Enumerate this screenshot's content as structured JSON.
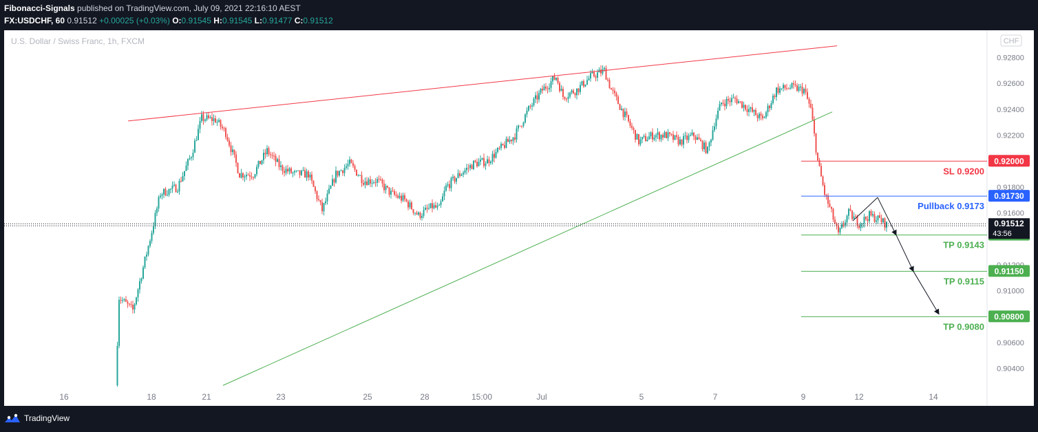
{
  "header": {
    "author": "Fibonacci-Signals",
    "published_text": "published on TradingView.com, July 09, 2021 22:16:10 AEST",
    "symbol": "FX:USDCHF, 60",
    "last": "0.91512",
    "change": "+0.00025 (+0.03%)",
    "o_label": "O:",
    "o_value": "0.91545",
    "h_label": "H:",
    "h_value": "0.91545",
    "l_label": "L:",
    "l_value": "0.91477",
    "c_label": "C:",
    "c_value": "0.91512"
  },
  "footer": {
    "brand": "TradingView"
  },
  "colors": {
    "up": "#26a69a",
    "down": "#ef5350",
    "sl": "#f23645",
    "pullback": "#2962ff",
    "tp": "#4caf50",
    "resistance": "#f23645",
    "support": "#4caf50",
    "arrow": "#131722",
    "axis_text": "#787b86",
    "current": "#131722"
  },
  "chart_data": {
    "type": "candlestick",
    "title": "U.S. Dollar / Swiss Franc, 1h, FXCM",
    "currency": "CHF",
    "ylim": [
      0.9025,
      0.9301
    ],
    "y_ticks": [
      "0.92800",
      "0.92600",
      "0.92400",
      "0.92200",
      "0.91800",
      "0.91600",
      "0.91200",
      "0.91000",
      "0.90600",
      "0.90400"
    ],
    "x_ticks": [
      "16",
      "18",
      "21",
      "23",
      "25",
      "28",
      "15:00",
      "Jul",
      "5",
      "7",
      "9",
      "12",
      "14"
    ],
    "price_path": [
      [
        0,
        0.9027
      ],
      [
        1,
        0.9095
      ],
      [
        5,
        0.9085
      ],
      [
        10,
        0.914
      ],
      [
        13,
        0.9175
      ],
      [
        18,
        0.918
      ],
      [
        22,
        0.9205
      ],
      [
        25,
        0.9233
      ],
      [
        29,
        0.9232
      ],
      [
        32,
        0.9222
      ],
      [
        36,
        0.919
      ],
      [
        40,
        0.919
      ],
      [
        44,
        0.9208
      ],
      [
        48,
        0.9195
      ],
      [
        52,
        0.919
      ],
      [
        56,
        0.919
      ],
      [
        60,
        0.9162
      ],
      [
        64,
        0.919
      ],
      [
        68,
        0.9198
      ],
      [
        72,
        0.9185
      ],
      [
        76,
        0.9185
      ],
      [
        80,
        0.9175
      ],
      [
        84,
        0.917
      ],
      [
        88,
        0.9158
      ],
      [
        92,
        0.9165
      ],
      [
        94,
        0.9163
      ],
      [
        96,
        0.918
      ],
      [
        100,
        0.919
      ],
      [
        104,
        0.9198
      ],
      [
        108,
        0.92
      ],
      [
        112,
        0.921
      ],
      [
        116,
        0.922
      ],
      [
        120,
        0.924
      ],
      [
        124,
        0.9255
      ],
      [
        128,
        0.9265
      ],
      [
        130,
        0.925
      ],
      [
        134,
        0.9255
      ],
      [
        138,
        0.9265
      ],
      [
        142,
        0.927
      ],
      [
        144,
        0.9255
      ],
      [
        146,
        0.9245
      ],
      [
        148,
        0.9235
      ],
      [
        152,
        0.9215
      ],
      [
        156,
        0.922
      ],
      [
        160,
        0.922
      ],
      [
        164,
        0.9215
      ],
      [
        168,
        0.922
      ],
      [
        172,
        0.9208
      ],
      [
        174,
        0.923
      ],
      [
        176,
        0.9245
      ],
      [
        180,
        0.9248
      ],
      [
        184,
        0.924
      ],
      [
        188,
        0.9232
      ],
      [
        192,
        0.9255
      ],
      [
        196,
        0.9257
      ],
      [
        200,
        0.9255
      ],
      [
        202,
        0.924
      ],
      [
        204,
        0.92
      ],
      [
        206,
        0.9175
      ],
      [
        208,
        0.916
      ],
      [
        210,
        0.9143
      ],
      [
        213,
        0.916
      ],
      [
        216,
        0.9152
      ],
      [
        219,
        0.9158
      ],
      [
        222,
        0.9155
      ],
      [
        224,
        0.9151
      ]
    ],
    "annotations": [
      {
        "type": "level",
        "label": "SL 0.9200",
        "price": 0.92,
        "axis_label": "0.92000",
        "color": "sl"
      },
      {
        "type": "level",
        "label": "Pullback 0.9173",
        "price": 0.9173,
        "axis_label": "0.91730",
        "color": "pullback"
      },
      {
        "type": "level",
        "label": "TP 0.9143",
        "price": 0.9143,
        "axis_label": "0.91430",
        "color": "tp"
      },
      {
        "type": "level",
        "label": "TP 0.9115",
        "price": 0.9115,
        "axis_label": "0.91150",
        "color": "tp"
      },
      {
        "type": "level",
        "label": "TP 0.9080",
        "price": 0.908,
        "axis_label": "0.90800",
        "color": "tp"
      }
    ],
    "current_price": {
      "value": "0.91512",
      "countdown": "43:56",
      "price": 0.91512
    },
    "trendlines": [
      {
        "name": "resistance",
        "from": [
          0.9231,
          "Jun 17"
        ],
        "to": [
          0.9289,
          "Jul 11"
        ]
      },
      {
        "name": "support",
        "from": [
          0.9027,
          "Jun 21"
        ],
        "to": [
          0.9238,
          "Jul 11"
        ]
      }
    ]
  }
}
